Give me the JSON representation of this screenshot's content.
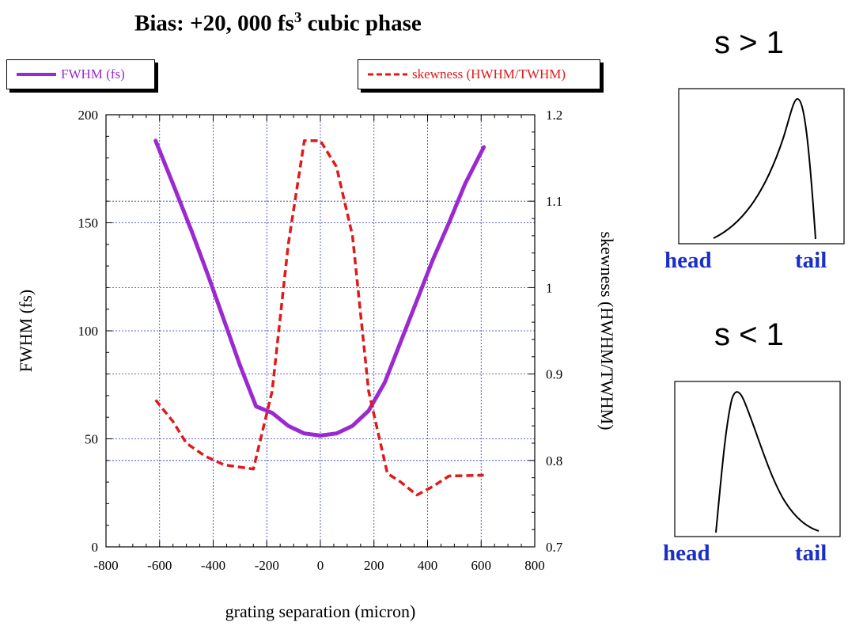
{
  "chart_data": {
    "type": "line",
    "title_main": "Bias: +20, 000 fs",
    "title_sup": "3",
    "title_rest": " cubic phase",
    "xlabel": "grating separation (micron)",
    "ylabel": "FWHM (fs)",
    "y2label": "skewness (HWHM/TWHM)",
    "xlim": [
      -800,
      800
    ],
    "ylim": [
      0,
      200
    ],
    "y2lim": [
      0.7,
      1.2
    ],
    "xticks": [
      "-800",
      "-600",
      "-400",
      "-200",
      "0",
      "200",
      "400",
      "600",
      "800"
    ],
    "yticks": [
      "0",
      "50",
      "100",
      "150",
      "200"
    ],
    "y2ticks": [
      "0.7",
      "0.8",
      "0.9",
      "1",
      "1.1",
      "1.2"
    ],
    "grid": true,
    "series": [
      {
        "name": "FWHM (fs)",
        "axis": "left",
        "color": "#9a2ad0",
        "style": "solid",
        "x": [
          -615,
          -550,
          -480,
          -420,
          -360,
          -300,
          -240,
          -180,
          -120,
          -60,
          0,
          60,
          120,
          180,
          240,
          300,
          360,
          420,
          480,
          540,
          610
        ],
        "y": [
          188,
          168,
          146,
          126,
          105,
          84,
          65,
          62,
          56,
          52.5,
          51.5,
          52.5,
          56,
          63,
          76,
          95,
          114,
          133,
          150,
          168,
          185
        ]
      },
      {
        "name": "skewness (HWHM/TWHM)",
        "axis": "right",
        "color": "#e01a1a",
        "style": "dashed",
        "x": [
          -615,
          -550,
          -500,
          -430,
          -360,
          -250,
          -180,
          -120,
          -60,
          0,
          60,
          120,
          180,
          250,
          300,
          360,
          420,
          480,
          610
        ],
        "y": [
          0.87,
          0.845,
          0.82,
          0.805,
          0.795,
          0.79,
          0.88,
          1.05,
          1.17,
          1.17,
          1.14,
          1.06,
          0.88,
          0.785,
          0.775,
          0.76,
          0.77,
          0.782,
          0.783
        ]
      }
    ],
    "legend_placement": "top"
  },
  "insets": [
    {
      "label": "s > 1",
      "head": "head",
      "tail": "tail"
    },
    {
      "label": "s < 1",
      "head": "head",
      "tail": "tail"
    }
  ]
}
